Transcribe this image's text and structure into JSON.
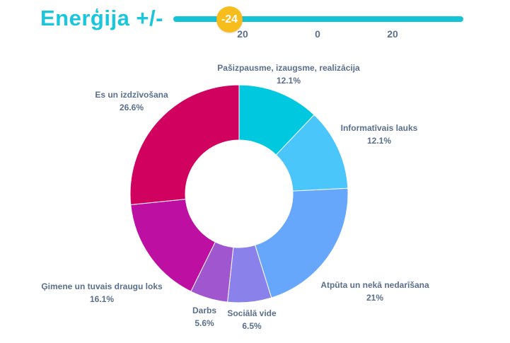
{
  "header": {
    "title": "Enerģija +/-",
    "slider": {
      "value": "-24",
      "ticks": [
        "20",
        "0",
        "20"
      ]
    }
  },
  "chart_data": {
    "type": "pie",
    "title": "",
    "labels": [
      "Pašizpausme, izaugsme, realizācija",
      "Informatīvais lauks",
      "Atpūta un nekā nedarīšana",
      "Sociālā vide",
      "Darbs",
      "Ģimene un tuvais draugu loks",
      "Es un izdzīvošana"
    ],
    "values": [
      12.1,
      12.1,
      21,
      6.5,
      5.6,
      16.1,
      26.6
    ],
    "value_labels": [
      "12.1%",
      "12.1%",
      "21%",
      "6.5%",
      "5.6%",
      "16.1%",
      "26.6%"
    ],
    "colors": [
      "#00c9df",
      "#4bc6fa",
      "#66a7fb",
      "#8a82ea",
      "#9f56ce",
      "#bd10a2",
      "#d0015f"
    ],
    "donut": true,
    "direction": "clockwise",
    "start": "top"
  }
}
